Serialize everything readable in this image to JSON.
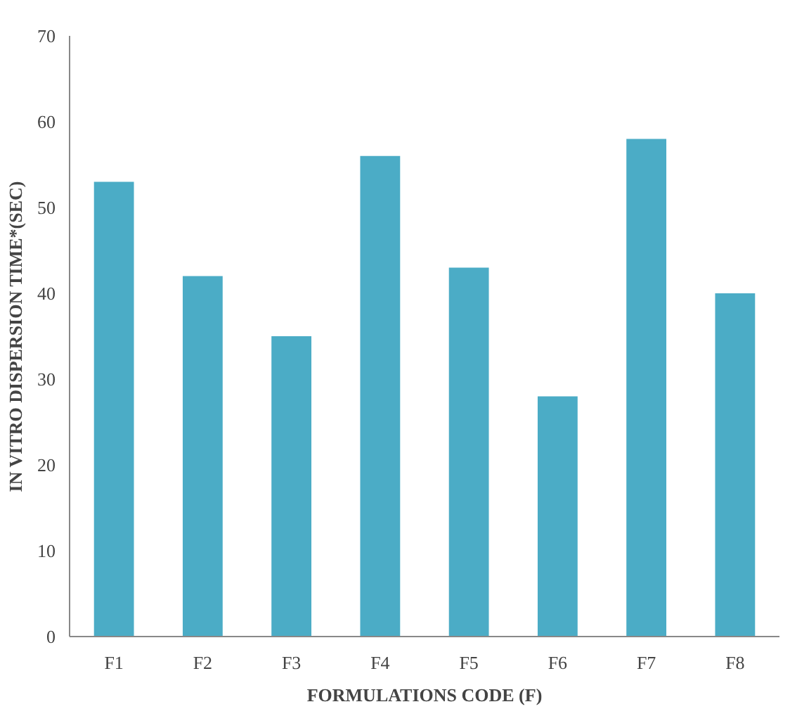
{
  "chart_data": {
    "type": "bar",
    "xlabel": "FORMULATIONS CODE (F)",
    "ylabel": "IN VITRO DISPERSION TIME*(SEC)",
    "categories": [
      "F1",
      "F2",
      "F3",
      "F4",
      "F5",
      "F6",
      "F7",
      "F8"
    ],
    "values": [
      53,
      42,
      35,
      56,
      43,
      28,
      58,
      40
    ],
    "color": "#4bacc6",
    "ylim": [
      0,
      70
    ],
    "yticks": [
      0,
      10,
      20,
      30,
      40,
      50,
      60,
      70
    ],
    "grid": false
  }
}
